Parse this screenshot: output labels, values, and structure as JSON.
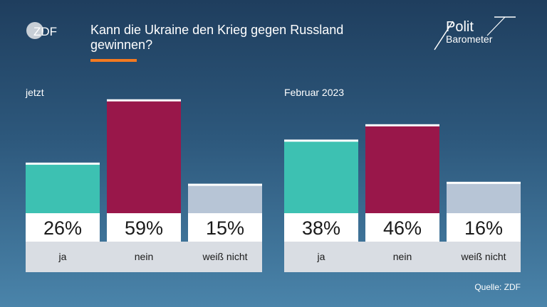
{
  "header": {
    "title": "Kann die Ukraine den Krieg gegen Russland gewinnen?",
    "zdf_logo_text": "ZDF",
    "polit_logo_line1": "Polit",
    "polit_logo_line2": "Barometer"
  },
  "source": "Quelle: ZDF",
  "colors": {
    "ja": "#3dc1b2",
    "nein": "#99174a",
    "weiss_nicht": "#b7c5d6",
    "accent": "#f47a20"
  },
  "chart_data": [
    {
      "type": "bar",
      "title": "jetzt",
      "categories": [
        "ja",
        "nein",
        "weiß nicht"
      ],
      "values": [
        26,
        59,
        15
      ],
      "labels": [
        "26%",
        "59%",
        "15%"
      ],
      "ylim": [
        0,
        60
      ]
    },
    {
      "type": "bar",
      "title": "Februar 2023",
      "categories": [
        "ja",
        "nein",
        "weiß nicht"
      ],
      "values": [
        38,
        46,
        16
      ],
      "labels": [
        "38%",
        "46%",
        "16%"
      ],
      "ylim": [
        0,
        60
      ]
    }
  ]
}
